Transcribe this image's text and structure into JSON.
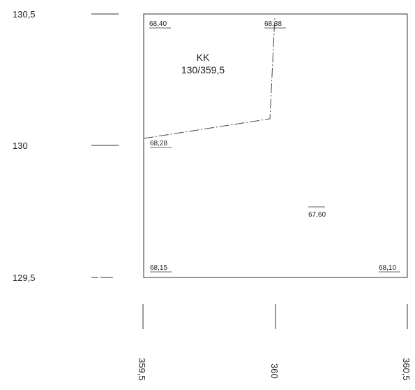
{
  "grid": {
    "y_labels": [
      "130,5",
      "130",
      "129,5"
    ],
    "x_labels": [
      "359,5",
      "360",
      "360,5"
    ]
  },
  "sheet": {
    "name": "KK",
    "id": "130/359,5"
  },
  "elevations": [
    {
      "value": "68,40",
      "underlined": true
    },
    {
      "value": "68,38",
      "underlined": true
    },
    {
      "value": "68,28",
      "underlined": true
    },
    {
      "value": "67,60",
      "underlined": false
    },
    {
      "value": "68,15",
      "underlined": true
    },
    {
      "value": "68,10",
      "underlined": true
    }
  ]
}
